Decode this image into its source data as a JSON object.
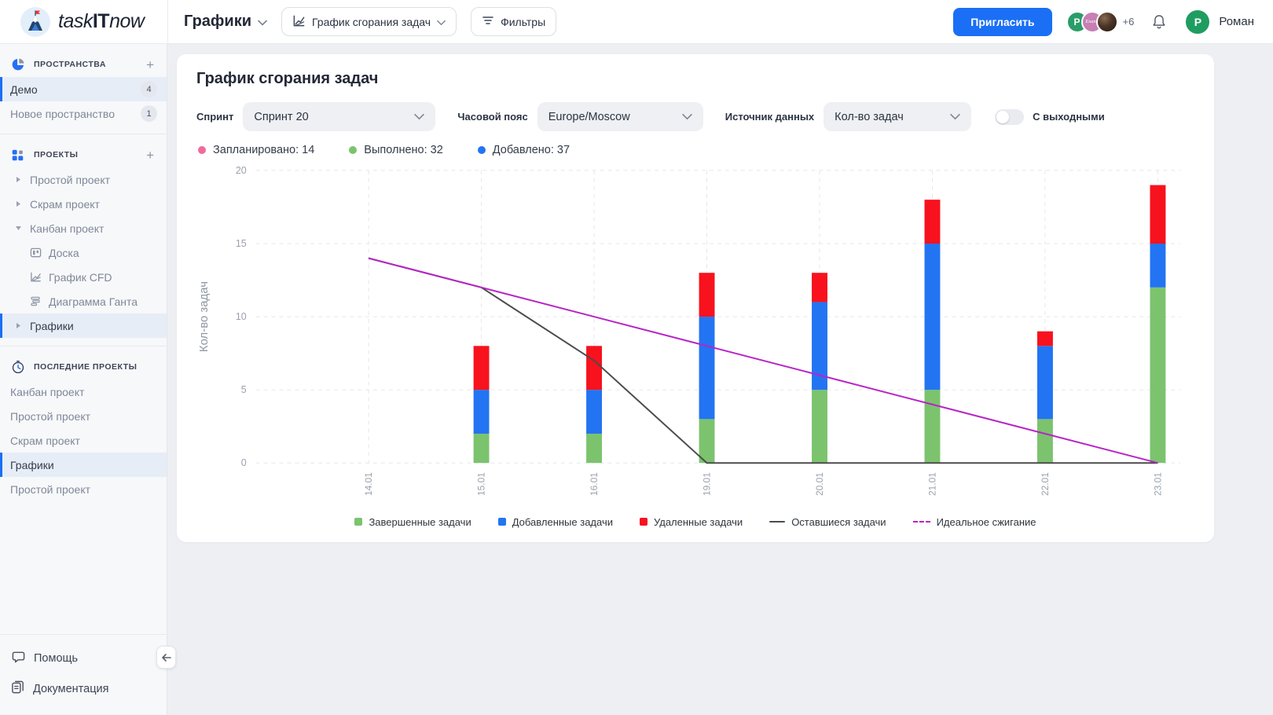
{
  "header": {
    "logo_task": "task",
    "logo_it": "IT",
    "logo_now": "now",
    "nav_title": "Графики",
    "chart_selector": "График сгорания задач",
    "filters_button": "Фильтры",
    "invite_button": "Пригласить",
    "avatars": [
      {
        "initial": "P"
      },
      {
        "initial": "Exane"
      },
      {
        "initial": ""
      }
    ],
    "avatar_overflow": "+6",
    "user": {
      "initial": "P",
      "name": "Роман"
    }
  },
  "sidebar": {
    "spaces": {
      "title": "ПРОСТРАНСТВА",
      "items": [
        {
          "label": "Демо",
          "badge": "4",
          "active": true
        },
        {
          "label": "Новое пространство",
          "badge": "1",
          "active": false
        }
      ]
    },
    "projects": {
      "title": "ПРОЕКТЫ",
      "items": [
        {
          "label": "Простой проект",
          "expanded": false
        },
        {
          "label": "Скрам проект",
          "expanded": false
        },
        {
          "label": "Канбан проект",
          "expanded": true,
          "children": [
            {
              "label": "Доска"
            },
            {
              "label": "График CFD"
            },
            {
              "label": "Диаграмма Ганта"
            }
          ]
        },
        {
          "label": "Графики",
          "expanded": false,
          "active": true
        }
      ]
    },
    "recent": {
      "title": "ПОСЛЕДНИЕ ПРОЕКТЫ",
      "items": [
        {
          "label": "Канбан проект"
        },
        {
          "label": "Простой проект"
        },
        {
          "label": "Скрам проект"
        },
        {
          "label": "Графики",
          "active": true
        },
        {
          "label": "Простой проект"
        }
      ]
    },
    "help": "Помощь",
    "docs": "Документация"
  },
  "main": {
    "title": "График сгорания задач",
    "filters": {
      "sprint_label": "Спринт",
      "sprint_value": "Спринт 20",
      "tz_label": "Часовой пояс",
      "tz_value": "Europe/Moscow",
      "source_label": "Источник данных",
      "source_value": "Кол-во задач",
      "weekends_label": "С выходными",
      "weekends_on": false
    },
    "stats": [
      {
        "label": "Запланировано: 14",
        "color": "#ef6b9b"
      },
      {
        "label": "Выполнено: 32",
        "color": "#7cc36e"
      },
      {
        "label": "Добавлено: 37",
        "color": "#2374f2"
      }
    ],
    "accent_color": "#1a6ff5"
  },
  "chart_data": {
    "type": "bar",
    "categories": [
      "14.01",
      "15.01",
      "16.01",
      "19.01",
      "20.01",
      "21.01",
      "22.01",
      "23.01"
    ],
    "series": [
      {
        "name": "Завершенные задачи",
        "type": "bar",
        "color": "#7cc36e",
        "values": [
          0,
          2,
          2,
          3,
          5,
          5,
          3,
          12
        ]
      },
      {
        "name": "Добавленные задачи",
        "type": "bar",
        "color": "#2374f2",
        "values": [
          0,
          3,
          3,
          7,
          6,
          10,
          5,
          3
        ]
      },
      {
        "name": "Удаленные задачи",
        "type": "bar",
        "color": "#f7121d",
        "values": [
          0,
          3,
          3,
          3,
          2,
          3,
          1,
          4
        ]
      },
      {
        "name": "Оставшиеся задачи",
        "type": "line",
        "color": "#4c4c4c",
        "values": [
          14,
          12,
          7,
          0,
          0,
          0,
          0,
          0
        ]
      },
      {
        "name": "Идеальное сжигание",
        "type": "line",
        "color": "#b824c6",
        "legend_dashed": true,
        "values": [
          14,
          12,
          10,
          8,
          6,
          4,
          2,
          0
        ]
      }
    ],
    "ylabel": "Кол-во задач",
    "ylim": [
      0,
      20
    ],
    "yticks": [
      0,
      5,
      10,
      15,
      20
    ],
    "grid": "dashed",
    "legend_position": "bottom"
  }
}
